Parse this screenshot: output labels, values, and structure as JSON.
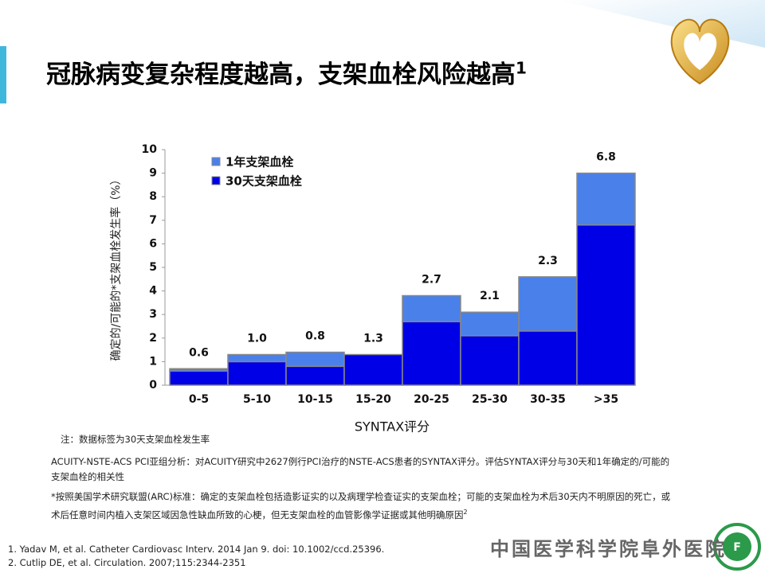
{
  "chart_data": {
    "type": "stacked_bar",
    "categories": [
      "0-5",
      "5-10",
      "10-15",
      "15-20",
      "20-25",
      "25-30",
      "30-35",
      ">35"
    ],
    "series": [
      {
        "name": "30天支架血栓",
        "color": "#0000e6",
        "values": [
          0.6,
          1.0,
          0.8,
          1.3,
          2.7,
          2.1,
          2.3,
          6.8
        ],
        "value_labels": [
          "0.6",
          "1.0",
          "0.8",
          "1.3",
          "2.7",
          "2.1",
          "2.3",
          "6.8"
        ]
      },
      {
        "name": "1年支架血栓",
        "color": "#4a80ea",
        "values": [
          0.1,
          0.3,
          0.6,
          0.0,
          1.1,
          1.0,
          2.3,
          2.2
        ]
      }
    ],
    "ylim": [
      0,
      10
    ],
    "yticks": [
      0,
      1,
      2,
      3,
      4,
      5,
      6,
      7,
      8,
      9,
      10
    ],
    "ylabel": "确定的/可能的*支架血栓发生率（%）",
    "xlabel": "SYNTAX评分",
    "legend": "upper left",
    "grid": false
  },
  "slide": {
    "title": "冠脉病变复杂程度越高，支架血栓风险越高",
    "title_sup": "1",
    "note": "注：数据标签为30天支架血栓发生率",
    "analysis": "ACUITY-NSTE-ACS  PCI亚组分析：对ACUITY研究中2627例行PCI治疗的NSTE-ACS患者的SYNTAX评分。评估SYNTAX评分与30天和1年确定的/可能的支架血栓的相关性",
    "definition": "*按照美国学术研究联盟(ARC)标准：确定的支架血栓包括造影证实的以及病理学检查证实的支架血栓；可能的支架血栓为术后30天内不明原因的死亡，或术后任意时间内植入支架区域因急性缺血所致的心梗，但无支架血栓的血管影像学证据或其他明确原因",
    "definition_sup": "2",
    "references": [
      "1. Yadav M, et al. Catheter Cardiovasc Interv.  2014 Jan 9. doi: 10.1002/ccd.25396.",
      "2. Cutlip DE, et al. Circulation.  2007;115:2344-2351"
    ],
    "institution": "中国医学科学院阜外医院"
  }
}
